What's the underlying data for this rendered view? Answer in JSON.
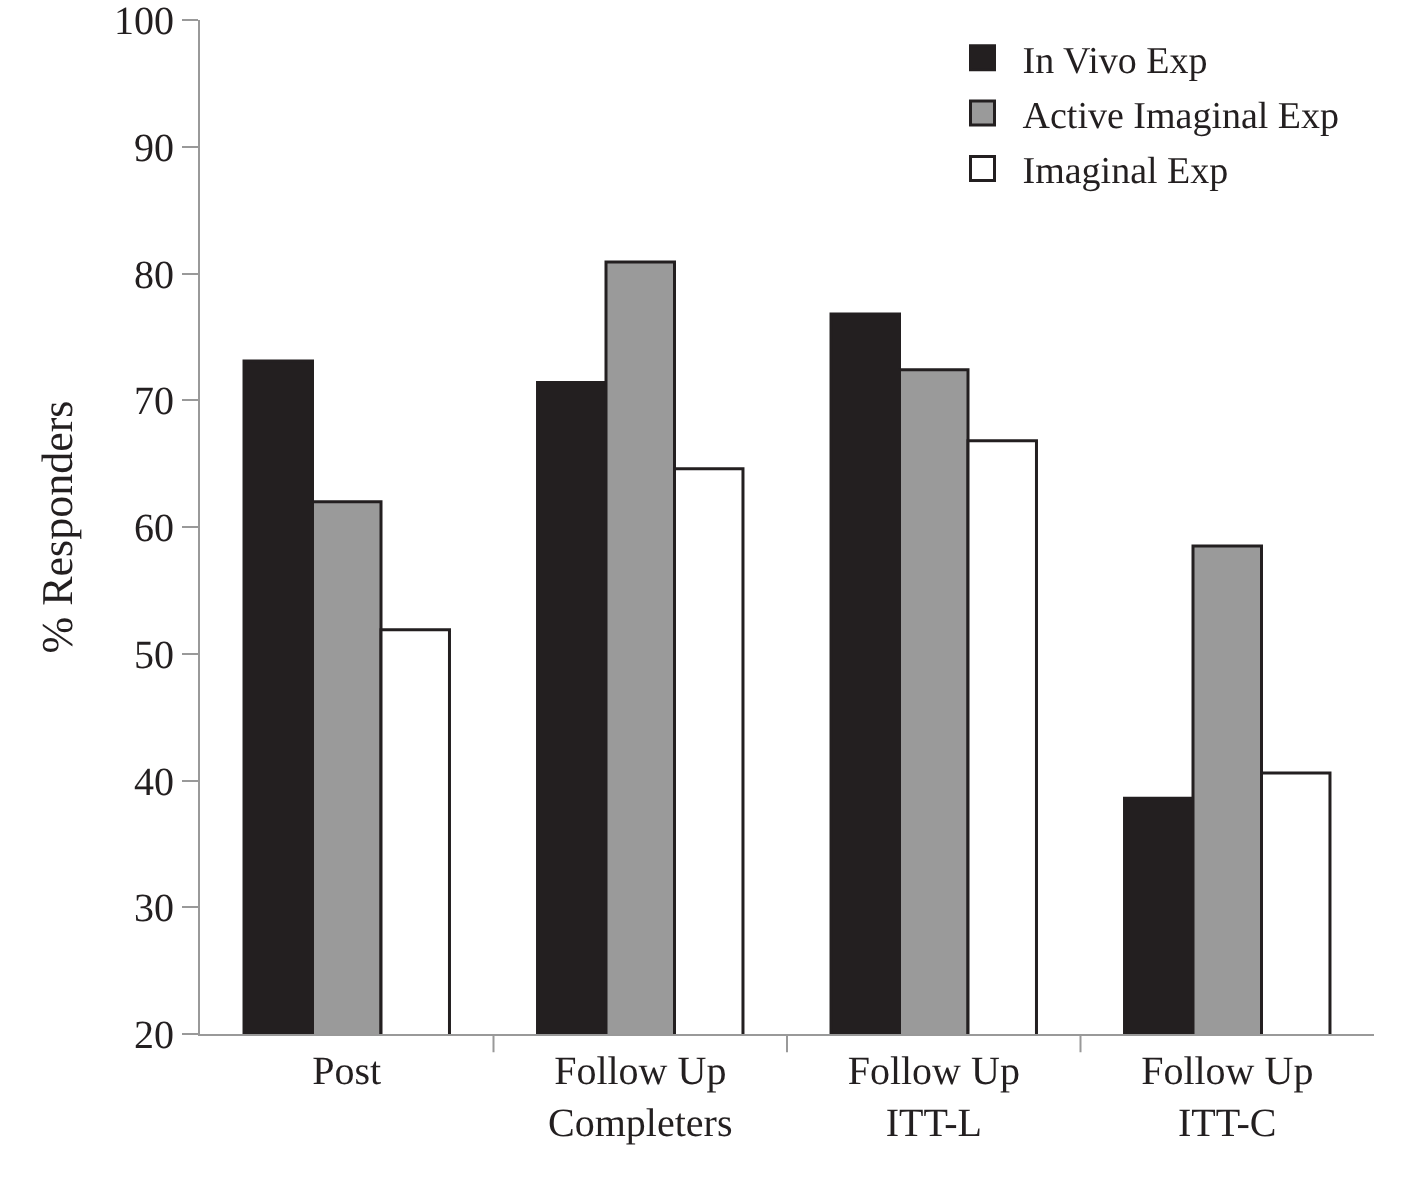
{
  "chart_data": {
    "type": "bar",
    "ylabel": "% Responders",
    "categories": [
      "Post",
      "Follow Up\nCompleters",
      "Follow Up\nITT-L",
      "Follow Up\nITT-C"
    ],
    "series": [
      {
        "name": "In Vivo Exp",
        "color": "#231f20",
        "values": [
          73.1,
          71.4,
          76.8,
          38.6
        ]
      },
      {
        "name": "Active Imaginal Exp",
        "color": "#9a9a9a",
        "values": [
          62.0,
          80.9,
          72.4,
          58.5
        ]
      },
      {
        "name": "Imaginal Exp",
        "color": "#ffffff",
        "values": [
          51.9,
          64.6,
          66.8,
          40.6
        ]
      }
    ],
    "ylim": [
      20,
      100
    ],
    "yticks": [
      20,
      30,
      40,
      50,
      60,
      70,
      80,
      90,
      100
    ],
    "grid": false,
    "legend": "top right"
  }
}
